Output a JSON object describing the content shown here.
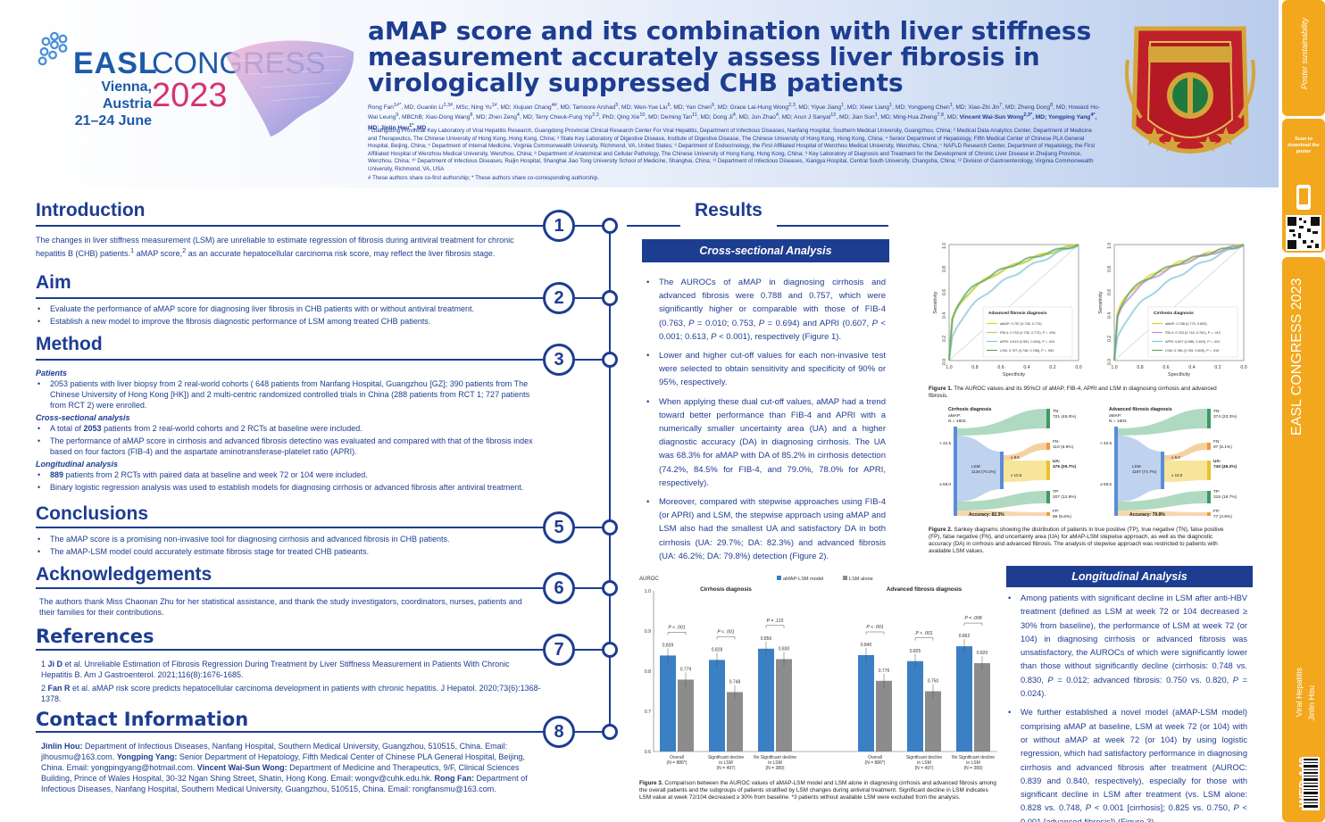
{
  "header": {
    "logo": {
      "easl": "EASL",
      "congress": "CONGRESS",
      "city": "Vienna, Austria",
      "dates": "21–24 June",
      "year": "2023"
    },
    "title": "aMAP score and its combination with liver stiffness measurement accurately assess liver fibrosis in virologically suppressed CHB patients",
    "authors_html": "Rong Fan<sup>1#*</sup>, MD; Guanlin Li<sup>2,3#</sup>, MSc; Ning Yu<sup>1#</sup>, MD; Xiujuan Chang<sup>4#</sup>, MD; Tamoore Arshad<sup>5</sup>, MD; Wen-Yue Liu<sup>6</sup>, MD; Yan Chen<sup>6</sup>, MD; Grace Lai-Hung Wong<sup>2,3</sup>, MD; Yiyue Jiang<sup>1</sup>, MD; Xieer Liang<sup>1</sup>, MD; Yongpeng Chen<sup>1</sup>, MD; Xiao-Zhi Jin<sup>7</sup>, MD; Zheng Dong<sup>8</sup>, MD; Howard Ho-Wai Leung<sup>9</sup>, MBChB; Xiao-Dong Wang<sup>8</sup>, MD; Zhen Zeng<sup>4</sup>, MD; Terry Cheuk-Fung Yip<sup>2,3</sup>, PhD; Qing Xie<sup>10</sup>, MD; Deming Tan<sup>11</sup>, MD; Dong Ji<sup>4</sup>, MD; Jun Zhao<sup>4</sup>, MD; Arun J Sanyal<sup>12</sup>, MD; Jian Sun<sup>1</sup>, MD; Ming-Hua Zheng<sup>7,8</sup>, MD; <b>Vincent Wai-Sun Wong<sup>2,3*</sup>, MD; Yongping Yang<sup>4*</sup>, MD; Jinlin Hou<sup>1*</sup>, MD</b>",
    "affiliations": "¹ Guangdong Provincial Key Laboratory of Viral Hepatitis Research, Guangdong Provincial Clinical Research Center For Viral Hepatitis, Department of Infectious Diseases, Nanfang Hospital, Southern Medical University, Guangzhou, China; ² Medical Data Analytics Center, Department of Medicine and Therapeutics, The Chinese University of Hong Kong, Hong Kong, China; ³ State Key Laboratory of Digestive Disease, Institute of Digestive Disease, The Chinese University of Hong Kong, Hong Kong, China; ⁴ Senior Department of Hepatology, Fifth Medical Center of Chinese PLA General Hospital, Beijing, China; ⁵ Department of Internal Medicine, Virginia Commonwealth University, Richmond, VA, United States; ⁶ Department of Endocrinology, the First Affiliated Hospital of Wenzhou Medical University, Wenzhou, China; ⁷ NAFLD Research Center, Department of Hepatology, the First Affiliated Hospital of Wenzhou Medical University, Wenzhou, China; ⁸ Department of Anatomical and Cellular Pathology, The Chinese University of Hong Kong, Hong Kong, China; ⁹ Key Laboratory of Diagnosis and Treatment for the Development of Chronic Liver Disease in Zhejiang Province, Wenzhou, China; ¹⁰ Department of Infectious Diseases, Ruijin Hospital, Shanghai Jiao Tong University School of Medicine, Shanghai, China; ¹¹ Department of Infectious Diseases, Xiangya Hospital, Central South University, Changsha, China; ¹² Division of Gastroenterology, Virginia Commonwealth University, Richmond, VA, USA",
    "note": "# These authors share co-first authorship; * These authors share co-corresponding authorship."
  },
  "strip": {
    "scan": "Scan to download the poster",
    "congress": "EASL CONGRESS 2023",
    "topic": "Viral Hepatitis",
    "author": "Jinlin Hou",
    "code": "WED-149"
  },
  "sections": {
    "introduction": {
      "heading": "Introduction",
      "num": "1",
      "text_html": "The changes in liver stiffness measurement (LSM) are unreliable to estimate regression of fibrosis during antiviral treatment for chronic hepatitis B (CHB) patients.<sup>1</sup> aMAP score,<sup>2</sup> as an accurate hepatocellular carcinoma risk score, may reflect the liver fibrosis stage."
    },
    "aim": {
      "heading": "Aim",
      "num": "2",
      "items": [
        "Evaluate the performance of aMAP score for diagnosing liver fibrosis in CHB patients with or without antiviral treatment.",
        "Establish a new model to improve the fibrosis diagnostic performance of LSM among treated CHB patients."
      ]
    },
    "method": {
      "heading": "Method",
      "num": "3",
      "patients_h": "Patients",
      "patients_items": [
        "2053 patients with liver biopsy from 2 real-world cohorts ( 648 patients from Nanfang Hospital, Guangzhou [GZ]; 390 patients from The Chinese University of Hong Kong [HK]) and 2 multi-centric randomized controlled trials in China (288 patients from RCT 1; 727 patients from RCT 2) were enrolled."
      ],
      "cross_h": "Cross-sectional analysis",
      "cross_items_html": [
        "A total of <b>2053</b> patients from 2 real-world cohorts and  2 RCTs at baseline were included.",
        "The performance of aMAP score in cirrhosis and advanced fibrosis detectino was evaluated and compared with that of the fibrosis index based on four factors (FIB-4) and the aspartate aminotransferase-platelet ratio (APRI)."
      ],
      "long_h": "Longitudinal analysis",
      "long_items_html": [
        "<b>889</b> patients from 2 RCTs with paired data at baseline and week 72 or 104 were included.",
        "Binary logistic regression analysis was used to establish models for diagnosing cirrhosis or advanced fibrosis after antiviral treatment."
      ]
    },
    "conclusions": {
      "heading": "Conclusions",
      "num": "5",
      "items": [
        "The aMAP score is a promising non-invasive tool for diagnosing cirrhosis and advanced fibrosis in CHB patients.",
        "The aMAP-LSM model could accurately estimate fibrosis stage for treated CHB patieants."
      ]
    },
    "acknowledgements": {
      "heading": "Acknowledgements",
      "num": "6",
      "text": "The authors thank Miss Chaonan Zhu for her statistical assistance, and thank the study investigators, coordinators, nurses, patients and their families for their contributions."
    },
    "references": {
      "heading": "References",
      "num": "7",
      "items_html": [
        "1 <b>Ji D</b> et al. Unreliable Estimation of Fibrosis Regression During Treatment by Liver Stiffness Measurement in Patients With Chronic Hepatitis B. Am J Gastroenterol. 2021;116(8):1676-1685.",
        "2 <b>Fan R</b> et al. aMAP risk score predicts hepatocellular carcinoma development in patients with chronic hepatitis. J Hepatol. 2020;73(6):1368-1378."
      ]
    },
    "contact": {
      "heading": "Contact Information",
      "num": "8",
      "text_html": "<b>Jinlin Hou:</b> Department of Infectious Diseases, Nanfang Hospital, Southern Medical University, Guangzhou, 510515, China. Email: jlhousmu@163.com. <b>Yongping Yang:</b> Senior Department of Hepatology, Fifth Medical Center of Chinese PLA General Hospital, Beijing, China. Email: yongpingyang@hotmail.com. <b>Vincent Wai-Sun Wong:</b> Department of Medicine and Therapeutics, 9/F, Clinical Sciences Building, Prince of Wales Hospital, 30-32 Ngan Shing Street, Shatin, Hong Kong. Email: wongv@cuhk.edu.hk. <b>Rong Fan:</b> Department of Infectious Diseases, Nanfang Hospital, Southern Medical University, Guangzhou, 510515, China. Email: rongfansmu@163.com."
    }
  },
  "results": {
    "heading": "Results",
    "cross_box": "Cross-sectional Analysis",
    "cross_items_html": [
      "The AUROCs of aMAP in diagnosing cirrhosis and advanced fibrosis were 0.788 and 0.757, which were significantly higher or comparable with those of FIB-4 (0.763, <i>P</i> = 0.010; 0.753, <i>P</i> = 0.694) and APRI (0.607, <i>P</i> &lt; 0.001; 0.613, <i>P</i> &lt; 0.001), respectively (Figure 1).",
      "Lower and higher cut-off values for each non-invasive test were selected to obtain sensitivity and specificity of 90% or 95%, respectively.",
      "When applying these dual cut-off values, aMAP had a trend toward better performance than FIB-4 and APRI with a numerically smaller uncertainty area (UA) and a higher diagnostic accuracy (DA) in diagnosing cirrhosis. The UA was 68.3% for aMAP with DA of 85.2% in cirrhosis detection (74.2%, 84.5% for FIB-4, and 79.0%, 78.0% for APRI, respectively).",
      "Moreover, compared with stepwise approaches using FIB-4 (or APRI) and LSM, the stepwise approach using aMAP and LSM also had the smallest UA and satisfactory DA in both cirrhosis (UA: 29.7%; DA: 82.3%) and advanced fibrosis (UA: 46.2%; DA: 79.8%) detection (Figure 2)."
    ],
    "long_box": "Longitudinal Analysis",
    "long_items_html": [
      "Among patients with significant decline in LSM after anti-HBV treatment (defined as LSM at week 72 or 104 decreased ≥ 30% from baseline), the performance of LSM at week 72 (or 104) in diagnosing cirrhosis or advanced fibrosis was unsatisfactory, the AUROCs of which were significantly lower than those without significantly decline (cirrhosis: 0.748 vs. 0.830, <i>P</i> = 0.012; advanced fibrosis: 0.750 vs. 0.820, <i>P</i> = 0.024).",
      "We further established a novel model (aMAP-LSM model) comprising aMAP at baseline, LSM at week 72 (or 104) with or without aMAP at week 72 (or 104) by using logistic regression, which had satisfactory performance in diagnosing cirrhosis and advanced fibrosis after treatment (AUROC: 0.839 and 0.840, respectively), especially for those with significant decline in LSM after treatment (vs. LSM alone: 0.828 vs. 0.748, <i>P</i> &lt; 0.001 [cirrhosis]; 0.825 vs. 0.750, <i>P</i> &lt; 0.001 [advanced fibrosis]) (Figure 3)."
    ],
    "fig1_caption_html": "<b>Figure 1.</b> The AUROC values and its 95%CI of aMAP, FIB-4, APRI and LSM in diagnosing cirrhosis and advanced fibrosis.",
    "fig2_caption_html": "<b>Figure 2.</b> Sankey diagrams showing the distribution of patients in true positive (TP), true negative (TN), false positive (FP), false negative (FN), and uncertainty area (UA) for aMAP-LSM stepwise approach, as well as the diagnostic accuracy (DA) in cirrhosis and advanced fibrosis. The analysis of stepwise approach was restricted to patients with available LSM values.",
    "fig3_caption_html": "<b>Figure 3.</b> Comparison between the AUROC values of aMAP-LSM model and LSM alone in diagnosing cirrhosis and advanced fibrosis among the overall patients and the subgroups of patients stratified by LSM changes during antiviral treatment. Significant decline in LSM indicates LSM value at week 72/104 decreased ≥ 30% from baseline. *3 patients without available LSM were excluded from the analysis."
  },
  "chart_data": [
    {
      "type": "line",
      "title": "Advanced fibrosis diagnosis",
      "xlabel": "Specificity",
      "ylabel": "Sensitivity",
      "x_ticks": [
        "1.0",
        "0.8",
        "0.6",
        "0.4",
        "0.2",
        "0.0"
      ],
      "y_ticks": [
        "0.0",
        "0.2",
        "0.4",
        "0.6",
        "0.8",
        "1.0"
      ],
      "series": [
        {
          "name": "aMAP: 0.757 (0.736, 0.775)",
          "color": "#e6d21e",
          "auc": 0.757
        },
        {
          "name": "FIB-4: 0.753 (0.736, 0.772), P = .694",
          "color": "#b6d35a",
          "auc": 0.753
        },
        {
          "name": "APRI: 0.613 (0.591, 0.634), P < .001",
          "color": "#84c6dd",
          "auc": 0.613
        },
        {
          "name": "LSM: 0.767 (0.746, 0.788), P = .592",
          "color": "#5aa86b",
          "auc": 0.767
        }
      ]
    },
    {
      "type": "line",
      "title": "Cirrhosis diagnosis",
      "xlabel": "Specificity",
      "ylabel": "Sensitivity",
      "x_ticks": [
        "1.0",
        "0.8",
        "0.6",
        "0.4",
        "0.2",
        "0.0"
      ],
      "y_ticks": [
        "0.0",
        "0.2",
        "0.4",
        "0.6",
        "0.8",
        "1.0"
      ],
      "series": [
        {
          "name": "aMAP: 0.788 (0.770, 0.805)",
          "color": "#e6d21e",
          "auc": 0.788
        },
        {
          "name": "FIB-4: 0.763 (0.744, 0.781), P = .010",
          "color": "#c08ad6",
          "auc": 0.763
        },
        {
          "name": "APRI: 0.607 (0.585, 0.629), P < .001",
          "color": "#84c6dd",
          "auc": 0.607
        },
        {
          "name": "LSM: 0.786 (0.765, 0.805), P = .919",
          "color": "#5aa86b",
          "auc": 0.786
        }
      ]
    },
    {
      "type": "bar",
      "ylabel": "AUROC",
      "ylim": [
        0.6,
        1.0
      ],
      "y_ticks": [
        "0.6",
        "0.7",
        "0.8",
        "0.9",
        "1.0"
      ],
      "legend": [
        "aMAP-LSM model",
        "LSM alone"
      ],
      "colors": [
        "#3b7fc4",
        "#8c8c8c"
      ],
      "panels": [
        {
          "title": "Cirrhosis diagnosis",
          "categories": [
            "Overall (N = 886*)",
            "Significant decline in LSM (N = 497)",
            "No Significant decline in LSM (N = 389)"
          ],
          "series": [
            {
              "name": "aMAP-LSM model",
              "values": [
                0.839,
                0.828,
                0.856
              ]
            },
            {
              "name": "LSM alone",
              "values": [
                0.779,
                0.748,
                0.83
              ]
            }
          ],
          "pvalues": [
            "P < .001",
            "P < .001",
            "P = .115"
          ]
        },
        {
          "title": "Advanced fibrosis diagnosis",
          "categories": [
            "Overall (N = 886*)",
            "Significant decline in LSM (N = 497)",
            "No Significant decline in LSM (N = 389)"
          ],
          "series": [
            {
              "name": "aMAP-LSM model",
              "values": [
                0.84,
                0.825,
                0.862
              ]
            },
            {
              "name": "LSM alone",
              "values": [
                0.776,
                0.75,
                0.82
              ]
            }
          ],
          "pvalues": [
            "P < .001",
            "P < .001",
            "P = .008"
          ]
        }
      ]
    }
  ],
  "sankey": [
    {
      "title": "Cirrhosis diagnosis",
      "sub": "aMAP:",
      "n": "N = 1603",
      "low": "< 42.5",
      "high": "≥ 59.0",
      "lsm": "LSM:",
      "lsm_n": "1126 (70.2%)",
      "lsm_low": "≤ 8.5",
      "lsm_high": "≥ 10.5",
      "tn": "TN:",
      "tn_v": "721 (45.0%)",
      "fn": "FN:",
      "fn_v": "110 (6.9%)",
      "ua": "UA:",
      "ua_v": "476 (29.7%)",
      "tp": "TP:",
      "tp_v": "207 (12.9%)",
      "fp": "FP:",
      "fp_v": "89 (5.6%)",
      "acc": "Accuracy: 82.3%"
    },
    {
      "title": "Advanced fibrosis diagnosis",
      "sub": "aMAP:",
      "n": "N = 1603",
      "low": "< 40.5",
      "high": "≥ 58.5",
      "lsm": "LSM:",
      "lsm_n": "1197 (74.7%)",
      "lsm_low": "≤ 6.0",
      "lsm_high": "≥ 10.0",
      "tn": "TN:",
      "tn_v": "374 (23.3%)",
      "fn": "FN:",
      "fn_v": "97 (6.1%)",
      "ua": "UA:",
      "ua_v": "740 (46.2%)",
      "tp": "TP:",
      "tp_v": "315 (19.7%)",
      "fp": "FP:",
      "fp_v": "77 (4.8%)",
      "acc": "Accuracy: 79.8%"
    }
  ]
}
